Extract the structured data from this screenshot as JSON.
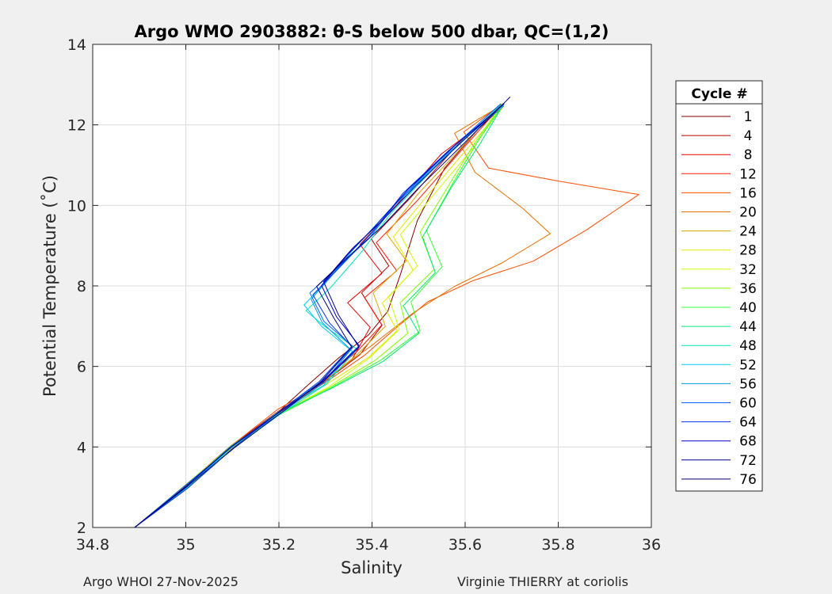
{
  "chart_data": {
    "type": "line",
    "title": "Argo WMO 2903882: θ-S below 500 dbar,  QC=(1,2)",
    "xlabel": "Salinity",
    "ylabel": "Potential Temperature (˚C)",
    "xlim": [
      34.8,
      36.0
    ],
    "ylim": [
      2,
      14
    ],
    "xticks": [
      "34.8",
      "35",
      "35.2",
      "35.4",
      "35.6",
      "35.8",
      "36"
    ],
    "yticks": [
      "2",
      "4",
      "6",
      "8",
      "10",
      "12",
      "14"
    ],
    "grid": true,
    "legend_title": "Cycle #",
    "legend_position": "right",
    "series": [
      {
        "name": "1",
        "color": "#800000",
        "x": [
          34.89,
          35.0,
          35.1,
          35.2,
          35.27,
          35.33,
          35.39,
          35.43,
          35.46,
          35.5,
          35.56,
          35.63,
          35.68
        ],
        "y": [
          2.0,
          3.0,
          4.0,
          4.85,
          5.55,
          6.2,
          6.8,
          7.4,
          8.3,
          9.6,
          10.9,
          11.9,
          12.5
        ]
      },
      {
        "name": "4",
        "color": "#b30000",
        "x": [
          34.89,
          35.0,
          35.1,
          35.2,
          35.29,
          35.37,
          35.42,
          35.38,
          35.44,
          35.4,
          35.48,
          35.58,
          35.68
        ],
        "y": [
          2.0,
          3.0,
          4.0,
          4.9,
          5.6,
          6.3,
          7.0,
          7.8,
          8.5,
          9.2,
          10.2,
          11.5,
          12.5
        ]
      },
      {
        "name": "8",
        "color": "#e60000",
        "x": [
          34.89,
          35.0,
          35.1,
          35.2,
          35.29,
          35.36,
          35.4,
          35.35,
          35.42,
          35.37,
          35.45,
          35.55,
          35.68
        ],
        "y": [
          2.0,
          3.0,
          4.0,
          4.85,
          5.55,
          6.2,
          7.0,
          7.6,
          8.3,
          9.0,
          10.0,
          11.3,
          12.4
        ]
      },
      {
        "name": "12",
        "color": "#ff1a00",
        "x": [
          34.89,
          35.0,
          35.1,
          35.2,
          35.29,
          35.37,
          35.42,
          35.38,
          35.45,
          35.41,
          35.5,
          35.6,
          35.68
        ],
        "y": [
          2.0,
          3.0,
          4.0,
          4.9,
          5.6,
          6.35,
          7.0,
          7.7,
          8.4,
          9.1,
          10.1,
          11.4,
          12.5
        ]
      },
      {
        "name": "16",
        "color": "#ff4d00",
        "x": [
          34.89,
          35.0,
          35.1,
          35.2,
          35.3,
          35.38,
          35.45,
          35.52,
          35.62,
          35.75,
          35.86,
          35.97,
          35.8,
          35.65,
          35.6,
          35.68
        ],
        "y": [
          2.0,
          3.0,
          4.0,
          4.9,
          5.6,
          6.3,
          7.0,
          7.6,
          8.1,
          8.6,
          9.4,
          10.3,
          10.6,
          10.9,
          11.8,
          12.5
        ]
      },
      {
        "name": "20",
        "color": "#e67300",
        "x": [
          34.89,
          35.0,
          35.1,
          35.2,
          35.3,
          35.4,
          35.49,
          35.58,
          35.68,
          35.78,
          35.72,
          35.62,
          35.58,
          35.68
        ],
        "y": [
          2.0,
          3.0,
          4.0,
          4.9,
          5.7,
          6.5,
          7.3,
          8.0,
          8.6,
          9.3,
          9.9,
          10.8,
          11.8,
          12.5
        ]
      },
      {
        "name": "24",
        "color": "#d9a600",
        "x": [
          34.89,
          35.0,
          35.1,
          35.2,
          35.29,
          35.37,
          35.43,
          35.4,
          35.47,
          35.43,
          35.5,
          35.6,
          35.68
        ],
        "y": [
          2.0,
          3.0,
          4.0,
          4.85,
          5.55,
          6.3,
          7.0,
          7.8,
          8.6,
          9.3,
          10.3,
          11.5,
          12.5
        ]
      },
      {
        "name": "28",
        "color": "#e6e600",
        "x": [
          34.89,
          35.0,
          35.1,
          35.2,
          35.3,
          35.39,
          35.45,
          35.42,
          35.49,
          35.45,
          35.52,
          35.61,
          35.68
        ],
        "y": [
          2.0,
          3.0,
          4.0,
          4.85,
          5.5,
          6.2,
          6.9,
          7.6,
          8.4,
          9.2,
          10.2,
          11.5,
          12.5
        ]
      },
      {
        "name": "32",
        "color": "#ccff00",
        "x": [
          34.89,
          35.0,
          35.1,
          35.2,
          35.3,
          35.39,
          35.46,
          35.44,
          35.5,
          35.46,
          35.53,
          35.62,
          35.68
        ],
        "y": [
          2.0,
          3.0,
          4.0,
          4.85,
          5.5,
          6.2,
          6.9,
          7.7,
          8.5,
          9.3,
          10.3,
          11.5,
          12.5
        ]
      },
      {
        "name": "36",
        "color": "#80ff00",
        "x": [
          34.89,
          35.0,
          35.1,
          35.2,
          35.31,
          35.41,
          35.48,
          35.46,
          35.53,
          35.5,
          35.56,
          35.62,
          35.68
        ],
        "y": [
          2.0,
          3.0,
          4.0,
          4.8,
          5.45,
          6.15,
          6.85,
          7.6,
          8.4,
          9.3,
          10.4,
          11.5,
          12.5
        ]
      },
      {
        "name": "40",
        "color": "#33ff33",
        "x": [
          34.89,
          35.0,
          35.1,
          35.2,
          35.31,
          35.42,
          35.5,
          35.48,
          35.55,
          35.52,
          35.58,
          35.63,
          35.68
        ],
        "y": [
          2.0,
          3.0,
          4.0,
          4.8,
          5.45,
          6.15,
          6.85,
          7.6,
          8.5,
          9.4,
          10.6,
          11.6,
          12.5
        ]
      },
      {
        "name": "44",
        "color": "#00e673",
        "x": [
          34.89,
          35.0,
          35.1,
          35.2,
          35.31,
          35.42,
          35.5,
          35.47,
          35.54,
          35.51,
          35.57,
          35.63,
          35.68
        ],
        "y": [
          2.0,
          3.0,
          4.0,
          4.8,
          5.45,
          6.15,
          6.85,
          7.5,
          8.3,
          9.2,
          10.5,
          11.6,
          12.5
        ]
      },
      {
        "name": "48",
        "color": "#00e6b3",
        "x": [
          34.89,
          35.0,
          35.1,
          35.2,
          35.3,
          35.37,
          35.3,
          35.26,
          35.31,
          35.37,
          35.44,
          35.56,
          35.68
        ],
        "y": [
          2.0,
          3.0,
          4.0,
          4.85,
          5.55,
          6.4,
          7.0,
          7.4,
          8.0,
          8.8,
          9.8,
          11.2,
          12.5
        ]
      },
      {
        "name": "52",
        "color": "#00ccff",
        "x": [
          34.89,
          35.0,
          35.1,
          35.2,
          35.3,
          35.36,
          35.29,
          35.25,
          35.3,
          35.36,
          35.44,
          35.56,
          35.68
        ],
        "y": [
          2.0,
          3.0,
          4.0,
          4.85,
          5.55,
          6.4,
          7.0,
          7.5,
          8.1,
          8.9,
          9.9,
          11.2,
          12.5
        ]
      },
      {
        "name": "56",
        "color": "#0099e6",
        "x": [
          34.89,
          35.0,
          35.1,
          35.2,
          35.29,
          35.35,
          35.29,
          35.27,
          35.32,
          35.38,
          35.45,
          35.56,
          35.68
        ],
        "y": [
          2.0,
          3.0,
          4.0,
          4.85,
          5.6,
          6.4,
          7.1,
          7.7,
          8.3,
          9.0,
          10.0,
          11.3,
          12.5
        ]
      },
      {
        "name": "60",
        "color": "#0066ff",
        "x": [
          34.89,
          35.0,
          35.1,
          35.2,
          35.29,
          35.36,
          35.3,
          35.27,
          35.33,
          35.39,
          35.45,
          35.56,
          35.68
        ],
        "y": [
          2.0,
          3.0,
          4.0,
          4.85,
          5.6,
          6.5,
          7.1,
          7.8,
          8.5,
          9.2,
          10.1,
          11.3,
          12.5
        ]
      },
      {
        "name": "64",
        "color": "#0033e6",
        "x": [
          34.89,
          35.0,
          35.1,
          35.2,
          35.29,
          35.36,
          35.31,
          35.27,
          35.33,
          35.4,
          35.47,
          35.57,
          35.68
        ],
        "y": [
          2.0,
          3.0,
          4.0,
          4.85,
          5.6,
          6.5,
          7.1,
          7.8,
          8.5,
          9.3,
          10.3,
          11.4,
          12.5
        ]
      },
      {
        "name": "68",
        "color": "#0000cc",
        "x": [
          34.89,
          35.0,
          35.1,
          35.2,
          35.29,
          35.37,
          35.32,
          35.29,
          35.35,
          35.41,
          35.48,
          35.58,
          35.68
        ],
        "y": [
          2.0,
          3.0,
          4.0,
          4.85,
          5.6,
          6.5,
          7.2,
          8.0,
          8.8,
          9.5,
          10.4,
          11.5,
          12.5
        ]
      },
      {
        "name": "72",
        "color": "#000099",
        "x": [
          34.89,
          35.0,
          35.1,
          35.2,
          35.29,
          35.37,
          35.33,
          35.3,
          35.36,
          35.42,
          35.49,
          35.58,
          35.68
        ],
        "y": [
          2.0,
          3.0,
          4.0,
          4.85,
          5.6,
          6.5,
          7.3,
          8.1,
          8.9,
          9.6,
          10.5,
          11.5,
          12.5
        ]
      },
      {
        "name": "76",
        "color": "#000080",
        "x": [
          34.89,
          35.0,
          35.1,
          35.2,
          35.29,
          35.36,
          35.32,
          35.28,
          35.34,
          35.42,
          35.5,
          35.6,
          35.7
        ],
        "y": [
          2.0,
          3.0,
          4.0,
          4.85,
          5.6,
          6.45,
          7.2,
          8.0,
          8.7,
          9.5,
          10.4,
          11.5,
          12.7
        ]
      }
    ]
  },
  "footer": {
    "left": "Argo WHOI 27-Nov-2025",
    "right": "Virginie THIERRY at coriolis"
  }
}
